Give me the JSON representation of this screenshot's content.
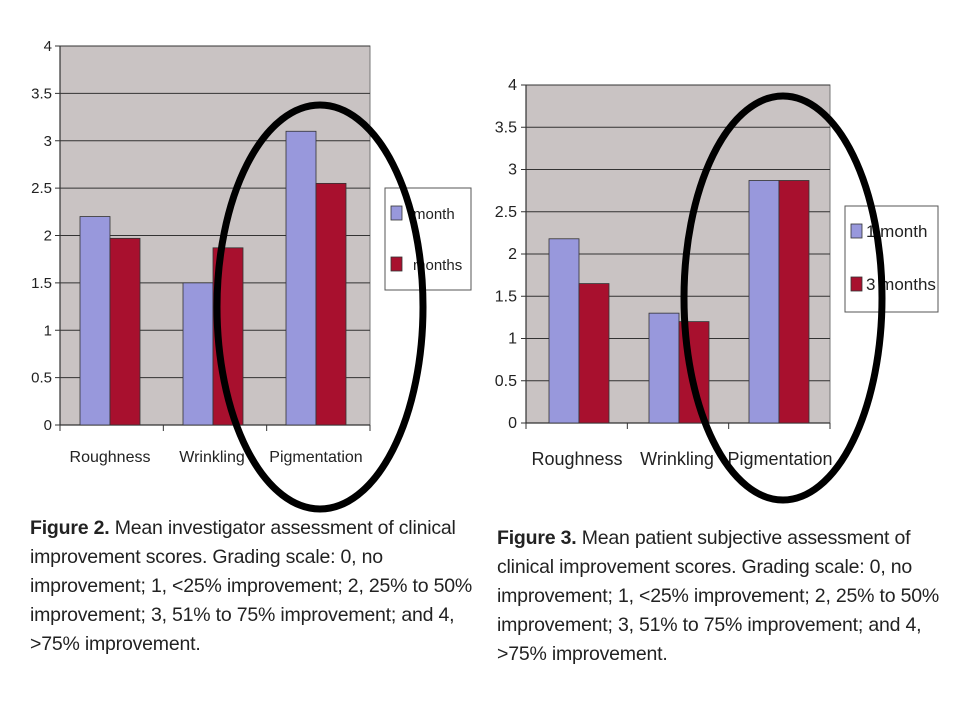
{
  "colors": {
    "plot_bg": "#c9c3c3",
    "series1": "#9898dc",
    "series2": "#a8102e",
    "ellipse": "#000000"
  },
  "figures": [
    {
      "caption_lead": "Figure 2.",
      "caption_text": "Mean investigator assessment of clinical improvement scores. Grading scale: 0, no improvement; 1, <25% improvement; 2, 25% to 50% improvement; 3, 51% to 75% improvement; and 4, >75% improvement."
    },
    {
      "caption_lead": "Figure 3.",
      "caption_text": "Mean patient subjective assessment of clinical improvement scores. Grading scale: 0, no improvement; 1, <25% improvement; 2, 25% to 50% improvement; 3, 51% to 75% improvement; and 4, >75% improvement."
    }
  ],
  "chart_data": [
    {
      "type": "bar",
      "categories": [
        "Roughness",
        "Wrinkling",
        "Pigmentation"
      ],
      "series": [
        {
          "name": "1 month",
          "values": [
            2.2,
            1.5,
            3.1
          ]
        },
        {
          "name": "3 months",
          "values": [
            1.97,
            1.87,
            2.55
          ]
        }
      ],
      "legend_labels": [
        "month",
        "months"
      ],
      "ylim": [
        0,
        4
      ],
      "yticks": [
        "0",
        "0.5",
        "1",
        "1.5",
        "2",
        "2.5",
        "3",
        "3.5",
        "4"
      ],
      "grid": true,
      "legend": "right",
      "title": "",
      "xlabel": "",
      "ylabel": ""
    },
    {
      "type": "bar",
      "categories": [
        "Roughness",
        "Wrinkling",
        "Pigmentation"
      ],
      "series": [
        {
          "name": "1 month",
          "values": [
            2.18,
            1.3,
            2.87
          ]
        },
        {
          "name": "3 months",
          "values": [
            1.65,
            1.2,
            2.87
          ]
        }
      ],
      "legend_labels": [
        "1 month",
        "3 months"
      ],
      "ylim": [
        0,
        4
      ],
      "yticks": [
        "0",
        "0.5",
        "1",
        "1.5",
        "2",
        "2.5",
        "3",
        "3.5",
        "4"
      ],
      "grid": true,
      "legend": "right",
      "title": "",
      "xlabel": "",
      "ylabel": ""
    }
  ]
}
